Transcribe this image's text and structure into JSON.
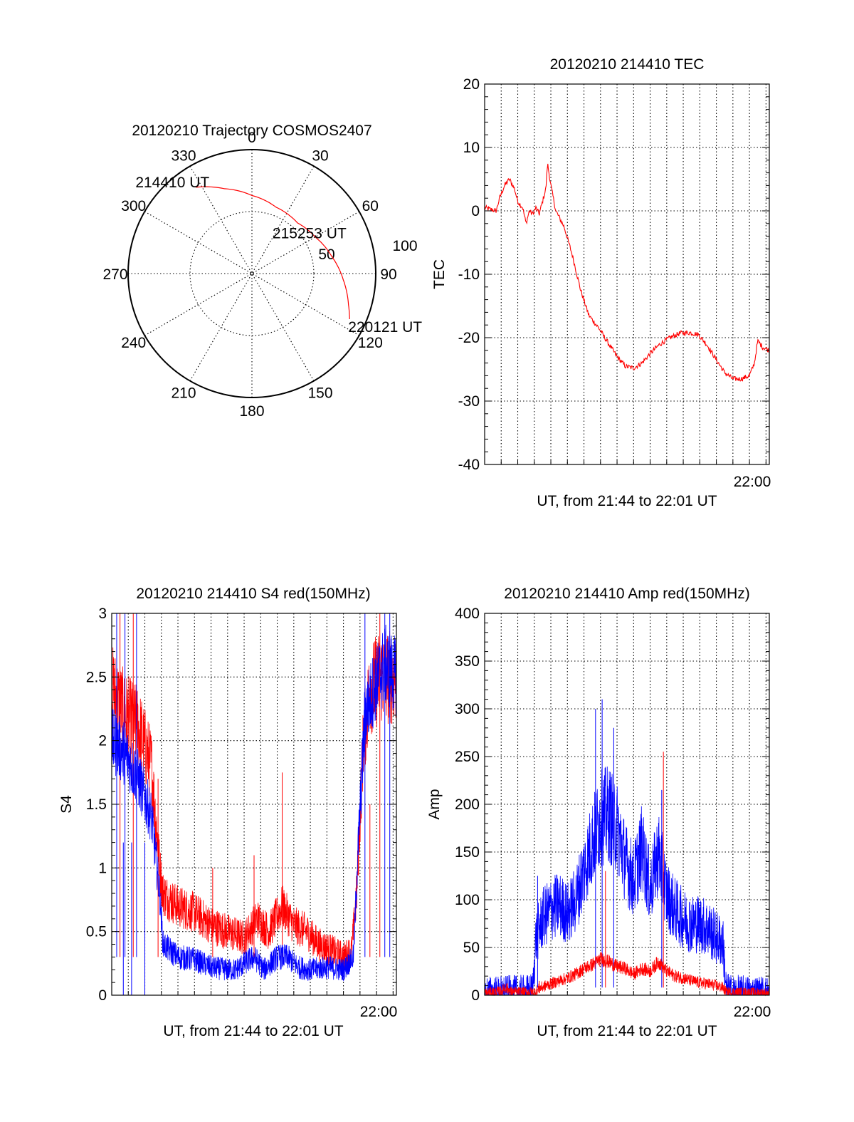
{
  "colors": {
    "red": "#ff0000",
    "blue": "#0000ff"
  },
  "chart_data": [
    {
      "id": "trajectory",
      "type": "polar",
      "title": "20120210 Trajectory COSMOS2407",
      "azimuth_labels": [
        "0",
        "30",
        "60",
        "90",
        "120",
        "150",
        "180",
        "210",
        "240",
        "270",
        "300",
        "330"
      ],
      "radial_labels": [
        "50",
        "100"
      ],
      "rlim": [
        0,
        100
      ],
      "grid": true,
      "series": [
        {
          "color": "red",
          "points": [
            {
              "az": 327,
              "r": 83
            },
            {
              "az": 342,
              "r": 72
            },
            {
              "az": 360,
              "r": 63
            },
            {
              "az": 20,
              "r": 57
            },
            {
              "az": 42,
              "r": 55
            },
            {
              "az": 60,
              "r": 59
            },
            {
              "az": 78,
              "r": 66
            },
            {
              "az": 94,
              "r": 74
            },
            {
              "az": 108,
              "r": 82
            },
            {
              "az": 115,
              "r": 87
            }
          ]
        }
      ],
      "annotations": [
        {
          "text": "214410 UT",
          "az": 327,
          "r": 83
        },
        {
          "text": "215253 UT",
          "az": 60,
          "r": 59
        },
        {
          "text": "220121 UT",
          "az": 115,
          "r": 87
        }
      ]
    },
    {
      "id": "tec",
      "type": "line",
      "title": "20120210 214410 TEC",
      "xlabel": "UT, from 21:44 to 22:01 UT",
      "ylabel": "TEC",
      "xlim": [
        0,
        17.2
      ],
      "ylim": [
        -40,
        20
      ],
      "yticks": [
        "20",
        "10",
        "0",
        "-10",
        "-20",
        "-30",
        "-40"
      ],
      "xtick_label": "22:00",
      "xtick_at": 16,
      "grid": true,
      "series": [
        {
          "color": "red",
          "noise": 0.4,
          "points": [
            [
              0.0,
              0.5
            ],
            [
              0.4,
              0.2
            ],
            [
              0.7,
              0.0
            ],
            [
              0.9,
              2.0
            ],
            [
              1.2,
              4.0
            ],
            [
              1.5,
              5.0
            ],
            [
              1.8,
              3.5
            ],
            [
              2.0,
              1.5
            ],
            [
              2.3,
              0.5
            ],
            [
              2.5,
              -2.0
            ],
            [
              2.7,
              0.0
            ],
            [
              2.9,
              -0.5
            ],
            [
              3.1,
              0.5
            ],
            [
              3.3,
              -0.5
            ],
            [
              3.5,
              1.5
            ],
            [
              3.7,
              3.5
            ],
            [
              3.8,
              7.5
            ],
            [
              4.0,
              4.0
            ],
            [
              4.3,
              0.0
            ],
            [
              4.8,
              -2.5
            ],
            [
              5.3,
              -7.0
            ],
            [
              5.8,
              -12.5
            ],
            [
              6.3,
              -16.5
            ],
            [
              6.9,
              -18.5
            ],
            [
              7.5,
              -21.0
            ],
            [
              8.0,
              -23.0
            ],
            [
              8.5,
              -24.5
            ],
            [
              9.0,
              -24.8
            ],
            [
              9.5,
              -24.0
            ],
            [
              10.0,
              -22.5
            ],
            [
              10.6,
              -21.0
            ],
            [
              11.2,
              -20.0
            ],
            [
              11.8,
              -19.3
            ],
            [
              12.4,
              -19.2
            ],
            [
              12.9,
              -19.5
            ],
            [
              13.4,
              -21.0
            ],
            [
              14.0,
              -23.5
            ],
            [
              14.5,
              -25.5
            ],
            [
              15.0,
              -26.5
            ],
            [
              15.5,
              -26.5
            ],
            [
              16.0,
              -26.0
            ],
            [
              16.3,
              -24.0
            ],
            [
              16.5,
              -20.5
            ],
            [
              16.8,
              -21.5
            ],
            [
              17.2,
              -22.0
            ]
          ]
        }
      ]
    },
    {
      "id": "s4",
      "type": "line",
      "title": "20120210 214410 S4 red(150MHz)",
      "xlabel": "UT, from 21:44 to 22:01 UT",
      "ylabel": "S4",
      "xlim": [
        0,
        17.2
      ],
      "ylim": [
        0,
        3
      ],
      "yticks": [
        "3",
        "2.5",
        "2",
        "1.5",
        "1",
        "0.5",
        "0"
      ],
      "xtick_label": "22:00",
      "xtick_at": 16,
      "grid": true,
      "series": [
        {
          "color": "red",
          "noise": 0.22,
          "spikes": [
            [
              0.5,
              3.0
            ],
            [
              1.3,
              3.0
            ],
            [
              2.8,
              1.7
            ],
            [
              6.1,
              1.0
            ],
            [
              8.6,
              1.1
            ],
            [
              10.3,
              1.75
            ],
            [
              15.6,
              1.5
            ],
            [
              16.2,
              3.0
            ]
          ],
          "points": [
            [
              0.0,
              2.4
            ],
            [
              0.8,
              2.2
            ],
            [
              1.6,
              2.1
            ],
            [
              2.4,
              1.8
            ],
            [
              2.9,
              1.0
            ],
            [
              3.1,
              0.8
            ],
            [
              3.5,
              0.75
            ],
            [
              4.0,
              0.7
            ],
            [
              5.0,
              0.65
            ],
            [
              6.0,
              0.55
            ],
            [
              7.0,
              0.5
            ],
            [
              8.0,
              0.45
            ],
            [
              8.8,
              0.6
            ],
            [
              9.5,
              0.5
            ],
            [
              10.3,
              0.7
            ],
            [
              11.0,
              0.55
            ],
            [
              11.8,
              0.5
            ],
            [
              12.5,
              0.4
            ],
            [
              13.3,
              0.35
            ],
            [
              14.0,
              0.3
            ],
            [
              14.5,
              0.35
            ],
            [
              14.8,
              0.8
            ],
            [
              15.2,
              2.0
            ],
            [
              15.6,
              2.4
            ],
            [
              16.2,
              2.5
            ],
            [
              17.2,
              2.5
            ]
          ]
        },
        {
          "color": "blue",
          "noise": 0.18,
          "spikes": [
            [
              0.3,
              3.0
            ],
            [
              0.8,
              3.0
            ],
            [
              1.5,
              3.0
            ],
            [
              0.7,
              0.0
            ],
            [
              1.2,
              0.0
            ],
            [
              2.0,
              0.0
            ],
            [
              15.3,
              3.0
            ],
            [
              16.5,
              3.0
            ],
            [
              16.8,
              3.0
            ]
          ],
          "points": [
            [
              0.0,
              2.0
            ],
            [
              0.8,
              1.9
            ],
            [
              1.6,
              1.7
            ],
            [
              2.4,
              1.4
            ],
            [
              2.9,
              0.8
            ],
            [
              3.1,
              0.4
            ],
            [
              4.0,
              0.3
            ],
            [
              5.0,
              0.28
            ],
            [
              6.0,
              0.22
            ],
            [
              7.0,
              0.2
            ],
            [
              7.5,
              0.2
            ],
            [
              8.0,
              0.25
            ],
            [
              8.6,
              0.3
            ],
            [
              9.2,
              0.2
            ],
            [
              10.0,
              0.3
            ],
            [
              10.6,
              0.3
            ],
            [
              11.3,
              0.22
            ],
            [
              12.0,
              0.2
            ],
            [
              13.0,
              0.22
            ],
            [
              14.0,
              0.2
            ],
            [
              14.6,
              0.3
            ],
            [
              14.9,
              1.2
            ],
            [
              15.3,
              2.2
            ],
            [
              15.8,
              2.4
            ],
            [
              16.5,
              2.6
            ],
            [
              17.2,
              2.5
            ]
          ]
        }
      ]
    },
    {
      "id": "amp",
      "type": "line",
      "title": "20120210 214410 Amp red(150MHz)",
      "xlabel": "UT, from 21:44 to 22:01 UT",
      "ylabel": "Amp",
      "xlim": [
        0,
        17.2
      ],
      "ylim": [
        0,
        400
      ],
      "yticks": [
        "400",
        "350",
        "300",
        "250",
        "200",
        "150",
        "100",
        "50",
        "0"
      ],
      "xtick_label": "22:00",
      "xtick_at": 16,
      "grid": true,
      "series": [
        {
          "color": "blue",
          "noise": 45,
          "spikes": [
            [
              6.7,
              300
            ],
            [
              7.1,
              310
            ],
            [
              7.8,
              280
            ],
            [
              10.7,
              215
            ],
            [
              3.2,
              125
            ]
          ],
          "points": [
            [
              0.0,
              2
            ],
            [
              2.5,
              3
            ],
            [
              2.9,
              5
            ],
            [
              3.1,
              60
            ],
            [
              3.5,
              80
            ],
            [
              4.0,
              90
            ],
            [
              4.5,
              95
            ],
            [
              5.0,
              85
            ],
            [
              5.5,
              100
            ],
            [
              6.0,
              130
            ],
            [
              6.5,
              160
            ],
            [
              7.0,
              185
            ],
            [
              7.5,
              190
            ],
            [
              8.0,
              175
            ],
            [
              8.5,
              140
            ],
            [
              9.0,
              120
            ],
            [
              9.5,
              155
            ],
            [
              10.0,
              110
            ],
            [
              10.5,
              150
            ],
            [
              11.0,
              105
            ],
            [
              11.5,
              90
            ],
            [
              12.0,
              80
            ],
            [
              12.5,
              75
            ],
            [
              13.0,
              75
            ],
            [
              13.5,
              70
            ],
            [
              14.0,
              60
            ],
            [
              14.4,
              55
            ],
            [
              14.6,
              5
            ],
            [
              15.0,
              3
            ],
            [
              17.2,
              2
            ]
          ]
        },
        {
          "color": "red",
          "noise": 14,
          "spikes": [
            [
              7.3,
              130
            ],
            [
              10.8,
              255
            ],
            [
              1.2,
              12
            ],
            [
              3.3,
              15
            ]
          ],
          "points": [
            [
              0.0,
              2
            ],
            [
              1.0,
              4
            ],
            [
              1.3,
              8
            ],
            [
              1.6,
              3
            ],
            [
              3.0,
              3
            ],
            [
              3.4,
              8
            ],
            [
              4.0,
              12
            ],
            [
              4.5,
              15
            ],
            [
              5.0,
              18
            ],
            [
              5.5,
              22
            ],
            [
              6.0,
              28
            ],
            [
              6.5,
              32
            ],
            [
              7.0,
              38
            ],
            [
              7.5,
              35
            ],
            [
              8.0,
              30
            ],
            [
              8.5,
              28
            ],
            [
              9.0,
              22
            ],
            [
              9.5,
              28
            ],
            [
              10.0,
              25
            ],
            [
              10.5,
              35
            ],
            [
              11.0,
              25
            ],
            [
              11.5,
              20
            ],
            [
              12.0,
              18
            ],
            [
              12.5,
              15
            ],
            [
              13.0,
              13
            ],
            [
              13.5,
              12
            ],
            [
              14.0,
              10
            ],
            [
              14.4,
              8
            ],
            [
              14.6,
              3
            ],
            [
              17.2,
              2
            ]
          ]
        }
      ]
    }
  ]
}
